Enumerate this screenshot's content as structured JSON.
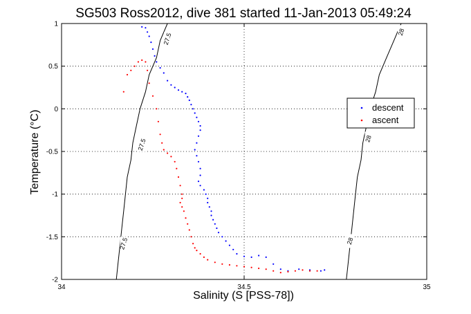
{
  "chart_data": {
    "type": "scatter",
    "title": "SG503 Ross2012, dive 381 started 11-Jan-2013 05:49:24",
    "xlabel": "Salinity (S [PSS-78])",
    "ylabel": "Temperature (°C)",
    "xlim": [
      34,
      35
    ],
    "ylim": [
      -2,
      1
    ],
    "xticks": [
      "34",
      "34.5",
      "35"
    ],
    "yticks": [
      "1",
      "0.5",
      "0",
      "-0.5",
      "-1",
      "-1.5",
      "-2"
    ],
    "grid": true,
    "legend": {
      "placement": "right",
      "entries": [
        "descent",
        "ascent"
      ]
    },
    "colors": {
      "descent": "#0000ff",
      "ascent": "#ff0000"
    },
    "contours": [
      {
        "value": 27.5,
        "label": "27.5",
        "points": [
          [
            34.29,
            1.0
          ],
          [
            34.27,
            0.8
          ],
          [
            34.26,
            0.6
          ],
          [
            34.24,
            0.4
          ],
          [
            34.23,
            0.2
          ],
          [
            34.215,
            0.0
          ],
          [
            34.205,
            -0.2
          ],
          [
            34.195,
            -0.4
          ],
          [
            34.19,
            -0.6
          ],
          [
            34.18,
            -0.8
          ],
          [
            34.175,
            -1.0
          ],
          [
            34.17,
            -1.2
          ],
          [
            34.165,
            -1.4
          ],
          [
            34.16,
            -1.6
          ],
          [
            34.155,
            -1.8
          ],
          [
            34.15,
            -2.0
          ]
        ],
        "labels": [
          [
            34.29,
            0.82
          ],
          [
            34.22,
            -0.42
          ],
          [
            34.17,
            -1.58
          ]
        ]
      },
      {
        "value": 28,
        "label": "28",
        "points": [
          [
            34.93,
            1.0
          ],
          [
            34.91,
            0.8
          ],
          [
            34.89,
            0.6
          ],
          [
            34.87,
            0.4
          ],
          [
            34.86,
            0.2
          ],
          [
            34.845,
            0.0
          ],
          [
            34.835,
            -0.2
          ],
          [
            34.825,
            -0.4
          ],
          [
            34.82,
            -0.6
          ],
          [
            34.81,
            -0.8
          ],
          [
            34.805,
            -1.0
          ],
          [
            34.8,
            -1.2
          ],
          [
            34.795,
            -1.4
          ],
          [
            34.79,
            -1.6
          ],
          [
            34.785,
            -1.8
          ],
          [
            34.78,
            -2.0
          ]
        ],
        "labels": [
          [
            34.93,
            0.9
          ],
          [
            34.84,
            -0.35
          ],
          [
            34.79,
            -1.55
          ]
        ]
      }
    ],
    "series": [
      {
        "name": "descent",
        "points": [
          [
            34.22,
            0.96
          ],
          [
            34.23,
            0.95
          ],
          [
            34.235,
            0.9
          ],
          [
            34.24,
            0.85
          ],
          [
            34.245,
            0.78
          ],
          [
            34.25,
            0.7
          ],
          [
            34.255,
            0.62
          ],
          [
            34.26,
            0.55
          ],
          [
            34.27,
            0.48
          ],
          [
            34.28,
            0.42
          ],
          [
            34.29,
            0.33
          ],
          [
            34.3,
            0.28
          ],
          [
            34.31,
            0.25
          ],
          [
            34.32,
            0.22
          ],
          [
            34.33,
            0.2
          ],
          [
            34.34,
            0.18
          ],
          [
            34.345,
            0.14
          ],
          [
            34.35,
            0.1
          ],
          [
            34.355,
            0.05
          ],
          [
            34.36,
            0.0
          ],
          [
            34.365,
            -0.05
          ],
          [
            34.37,
            -0.1
          ],
          [
            34.375,
            -0.15
          ],
          [
            34.38,
            -0.2
          ],
          [
            34.38,
            -0.25
          ],
          [
            34.375,
            -0.32
          ],
          [
            34.37,
            -0.4
          ],
          [
            34.365,
            -0.48
          ],
          [
            34.37,
            -0.55
          ],
          [
            34.375,
            -0.62
          ],
          [
            34.38,
            -0.7
          ],
          [
            34.38,
            -0.78
          ],
          [
            34.375,
            -0.85
          ],
          [
            34.38,
            -0.9
          ],
          [
            34.39,
            -0.95
          ],
          [
            34.395,
            -1.0
          ],
          [
            34.4,
            -1.05
          ],
          [
            34.4,
            -1.1
          ],
          [
            34.405,
            -1.15
          ],
          [
            34.41,
            -1.2
          ],
          [
            34.41,
            -1.25
          ],
          [
            34.415,
            -1.3
          ],
          [
            34.42,
            -1.35
          ],
          [
            34.425,
            -1.4
          ],
          [
            34.43,
            -1.45
          ],
          [
            34.44,
            -1.5
          ],
          [
            34.45,
            -1.55
          ],
          [
            34.46,
            -1.6
          ],
          [
            34.47,
            -1.65
          ],
          [
            34.48,
            -1.7
          ],
          [
            34.5,
            -1.73
          ],
          [
            34.52,
            -1.74
          ],
          [
            34.54,
            -1.72
          ],
          [
            34.56,
            -1.74
          ],
          [
            34.58,
            -1.82
          ],
          [
            34.6,
            -1.88
          ],
          [
            34.62,
            -1.9
          ],
          [
            34.65,
            -1.88
          ],
          [
            34.68,
            -1.89
          ],
          [
            34.71,
            -1.9
          ],
          [
            34.72,
            -1.89
          ]
        ]
      },
      {
        "name": "ascent",
        "points": [
          [
            34.17,
            0.2
          ],
          [
            34.18,
            0.4
          ],
          [
            34.19,
            0.45
          ],
          [
            34.2,
            0.5
          ],
          [
            34.21,
            0.55
          ],
          [
            34.22,
            0.57
          ],
          [
            34.23,
            0.55
          ],
          [
            34.235,
            0.45
          ],
          [
            34.24,
            0.3
          ],
          [
            34.25,
            0.15
          ],
          [
            34.26,
            0.0
          ],
          [
            34.265,
            -0.15
          ],
          [
            34.27,
            -0.3
          ],
          [
            34.275,
            -0.4
          ],
          [
            34.28,
            -0.48
          ],
          [
            34.29,
            -0.52
          ],
          [
            34.3,
            -0.56
          ],
          [
            34.31,
            -0.62
          ],
          [
            34.315,
            -0.7
          ],
          [
            34.32,
            -0.8
          ],
          [
            34.325,
            -0.9
          ],
          [
            34.33,
            -1.0
          ],
          [
            34.33,
            -1.05
          ],
          [
            34.325,
            -1.1
          ],
          [
            34.33,
            -1.15
          ],
          [
            34.335,
            -1.2
          ],
          [
            34.34,
            -1.28
          ],
          [
            34.345,
            -1.35
          ],
          [
            34.35,
            -1.42
          ],
          [
            34.355,
            -1.5
          ],
          [
            34.36,
            -1.58
          ],
          [
            34.365,
            -1.63
          ],
          [
            34.37,
            -1.66
          ],
          [
            34.38,
            -1.7
          ],
          [
            34.39,
            -1.74
          ],
          [
            34.4,
            -1.77
          ],
          [
            34.42,
            -1.8
          ],
          [
            34.44,
            -1.82
          ],
          [
            34.46,
            -1.83
          ],
          [
            34.48,
            -1.84
          ],
          [
            34.5,
            -1.85
          ],
          [
            34.52,
            -1.86
          ],
          [
            34.54,
            -1.87
          ],
          [
            34.56,
            -1.88
          ],
          [
            34.58,
            -1.9
          ],
          [
            34.6,
            -1.92
          ],
          [
            34.62,
            -1.91
          ],
          [
            34.64,
            -1.9
          ],
          [
            34.66,
            -1.89
          ],
          [
            34.68,
            -1.9
          ],
          [
            34.7,
            -1.9
          ]
        ]
      }
    ]
  }
}
